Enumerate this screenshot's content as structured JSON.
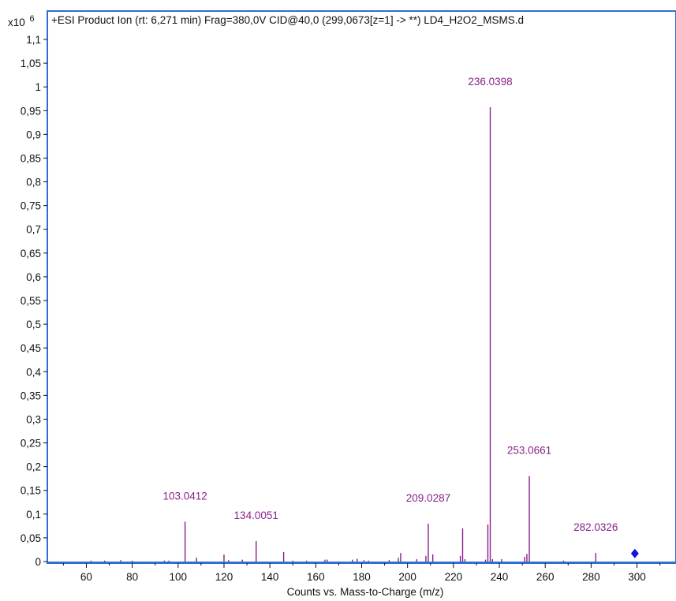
{
  "chart_data": {
    "type": "bar",
    "title": "+ESI Product Ion (rt: 6,271 min) Frag=380,0V CID@40,0 (299,0673[z=1] -> **) LD4_H2O2_MSMS.d",
    "xlabel": "Counts vs. Mass-to-Charge (m/z)",
    "y_multiplier": "x10",
    "y_exponent": "6",
    "xlim": [
      43,
      317
    ],
    "ylim": [
      0,
      1.15
    ],
    "x_ticks": [
      60,
      80,
      100,
      120,
      140,
      160,
      180,
      200,
      220,
      240,
      260,
      280,
      300
    ],
    "x_tick_labels": [
      "60",
      "80",
      "100",
      "120",
      "140",
      "160",
      "180",
      "200",
      "220",
      "240",
      "260",
      "280",
      "300"
    ],
    "y_ticks": [
      0,
      0.05,
      0.1,
      0.15,
      0.2,
      0.25,
      0.3,
      0.35,
      0.4,
      0.45,
      0.5,
      0.55,
      0.6,
      0.65,
      0.7,
      0.75,
      0.8,
      0.85,
      0.9,
      0.95,
      1,
      1.05,
      1.1
    ],
    "y_tick_labels": [
      "0",
      "0,05",
      "0,1",
      "0,15",
      "0,2",
      "0,25",
      "0,3",
      "0,35",
      "0,4",
      "0,45",
      "0,5",
      "0,55",
      "0,6",
      "0,65",
      "0,7",
      "0,75",
      "0,8",
      "0,85",
      "0,9",
      "0,95",
      "1",
      "1,05",
      "1,1"
    ],
    "series": [
      {
        "x": [
          62,
          68,
          75,
          80,
          94,
          96,
          103.04,
          108,
          120,
          122,
          128,
          134.01,
          146,
          150,
          156,
          164,
          165,
          176,
          178,
          181,
          183,
          192,
          196,
          197,
          204,
          208,
          209.03,
          211,
          223,
          224,
          225,
          234,
          235,
          236.04,
          237,
          241,
          251,
          252,
          253.07,
          268,
          282.03
        ],
        "y": [
          0.002,
          0.002,
          0.003,
          0.002,
          0.002,
          0.002,
          0.084,
          0.008,
          0.015,
          0.003,
          0.004,
          0.043,
          0.02,
          0.002,
          0.002,
          0.004,
          0.004,
          0.004,
          0.006,
          0.003,
          0.002,
          0.003,
          0.008,
          0.018,
          0.005,
          0.012,
          0.08,
          0.015,
          0.012,
          0.07,
          0.005,
          0.004,
          0.078,
          0.957,
          0.005,
          0.005,
          0.01,
          0.016,
          0.18,
          0.002,
          0.018
        ]
      }
    ],
    "peak_labels": [
      {
        "x": 103.0412,
        "y": 0.084,
        "text": "103.0412"
      },
      {
        "x": 134.0051,
        "y": 0.043,
        "text": "134.0051"
      },
      {
        "x": 209.0287,
        "y": 0.08,
        "text": "209.0287"
      },
      {
        "x": 236.0398,
        "y": 0.957,
        "text": "236.0398"
      },
      {
        "x": 253.0661,
        "y": 0.18,
        "text": "253.0661"
      },
      {
        "x": 282.0326,
        "y": 0.018,
        "text": "282.0326"
      }
    ],
    "precursor_marker": {
      "x": 299.0673,
      "y": 0.017
    },
    "colors": {
      "peaks": "#8a1f8a",
      "labels": "#8a1f8a",
      "frame": "#2f6fd0",
      "precursor": "#1414e0"
    },
    "grid": false,
    "legend": "none"
  }
}
